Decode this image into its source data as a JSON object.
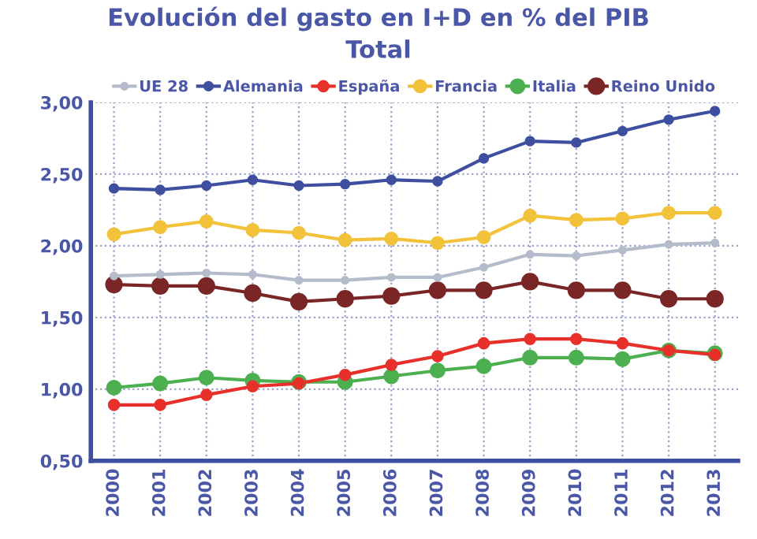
{
  "chart_data": {
    "type": "line",
    "title": "Evolución del gasto en I+D en % del PIB",
    "subtitle": "Total",
    "categories": [
      "2000",
      "2001",
      "2002",
      "2003",
      "2004",
      "2005",
      "2006",
      "2007",
      "2008",
      "2009",
      "2010",
      "2011",
      "2012",
      "2013"
    ],
    "series": [
      {
        "name": "UE 28",
        "color": "#b4bccb",
        "values": [
          1.79,
          1.8,
          1.81,
          1.8,
          1.76,
          1.76,
          1.78,
          1.78,
          1.85,
          1.94,
          1.93,
          1.97,
          2.01,
          2.02
        ]
      },
      {
        "name": "Alemania",
        "color": "#3f4fa0",
        "values": [
          2.4,
          2.39,
          2.42,
          2.46,
          2.42,
          2.43,
          2.46,
          2.45,
          2.61,
          2.73,
          2.72,
          2.8,
          2.88,
          2.94
        ]
      },
      {
        "name": "España",
        "color": "#e8302a",
        "values": [
          0.89,
          0.89,
          0.96,
          1.02,
          1.04,
          1.1,
          1.17,
          1.23,
          1.32,
          1.35,
          1.35,
          1.32,
          1.27,
          1.24
        ]
      },
      {
        "name": "Francia",
        "color": "#f2c23a",
        "values": [
          2.08,
          2.13,
          2.17,
          2.11,
          2.09,
          2.04,
          2.05,
          2.02,
          2.06,
          2.21,
          2.18,
          2.19,
          2.23,
          2.23
        ]
      },
      {
        "name": "Italia",
        "color": "#4caf50",
        "values": [
          1.01,
          1.04,
          1.08,
          1.06,
          1.05,
          1.05,
          1.09,
          1.13,
          1.16,
          1.22,
          1.22,
          1.21,
          1.27,
          1.25
        ]
      },
      {
        "name": "Reino Unido",
        "color": "#7a2626",
        "values": [
          1.73,
          1.72,
          1.72,
          1.67,
          1.61,
          1.63,
          1.65,
          1.69,
          1.69,
          1.75,
          1.69,
          1.69,
          1.63,
          1.63
        ]
      }
    ],
    "ylim": [
      0.5,
      3.0
    ],
    "yticks": [
      {
        "value": 0.5,
        "label": "0,50"
      },
      {
        "value": 1.0,
        "label": "1,00"
      },
      {
        "value": 1.5,
        "label": "1,50"
      },
      {
        "value": 2.0,
        "label": "2,00"
      },
      {
        "value": 2.5,
        "label": "2,50"
      },
      {
        "value": 3.0,
        "label": "3,00"
      }
    ],
    "grid": true,
    "legend": "top",
    "marker": "circle",
    "line_style": "solid"
  }
}
